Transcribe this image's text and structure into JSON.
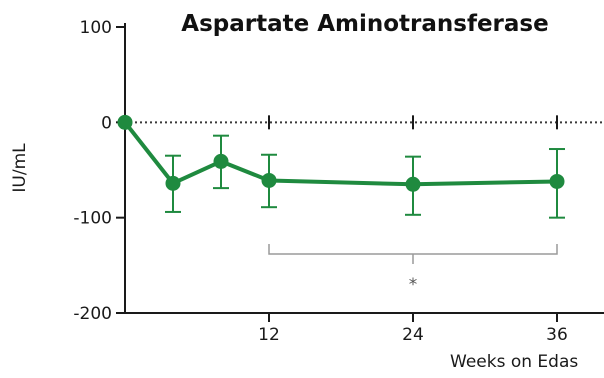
{
  "chart_data": {
    "type": "line",
    "title": "Aspartate Aminotransferase",
    "xlabel": "Weeks on Edas",
    "ylabel": "IU/mL",
    "xlim": [
      0,
      40
    ],
    "ylim": [
      -200,
      100
    ],
    "x_ticks": [
      12,
      24,
      36
    ],
    "y_ticks": [
      100,
      0,
      -100,
      -200
    ],
    "reference_line": 0,
    "grid": false,
    "series": [
      {
        "color": "#1f8a3f",
        "points": [
          {
            "x": 0,
            "y": 0,
            "err_low": 0,
            "err_high": 0
          },
          {
            "x": 4,
            "y": -64,
            "err_low": 30,
            "err_high": 29
          },
          {
            "x": 8,
            "y": -41,
            "err_low": 28,
            "err_high": 27
          },
          {
            "x": 12,
            "y": -61,
            "err_low": 28,
            "err_high": 27
          },
          {
            "x": 24,
            "y": -65,
            "err_low": 32,
            "err_high": 29
          },
          {
            "x": 36,
            "y": -62,
            "err_low": 38,
            "err_high": 34
          }
        ]
      }
    ],
    "significance": {
      "from_x": 12,
      "to_x": 36,
      "mid_x": 24,
      "label": "*"
    }
  }
}
